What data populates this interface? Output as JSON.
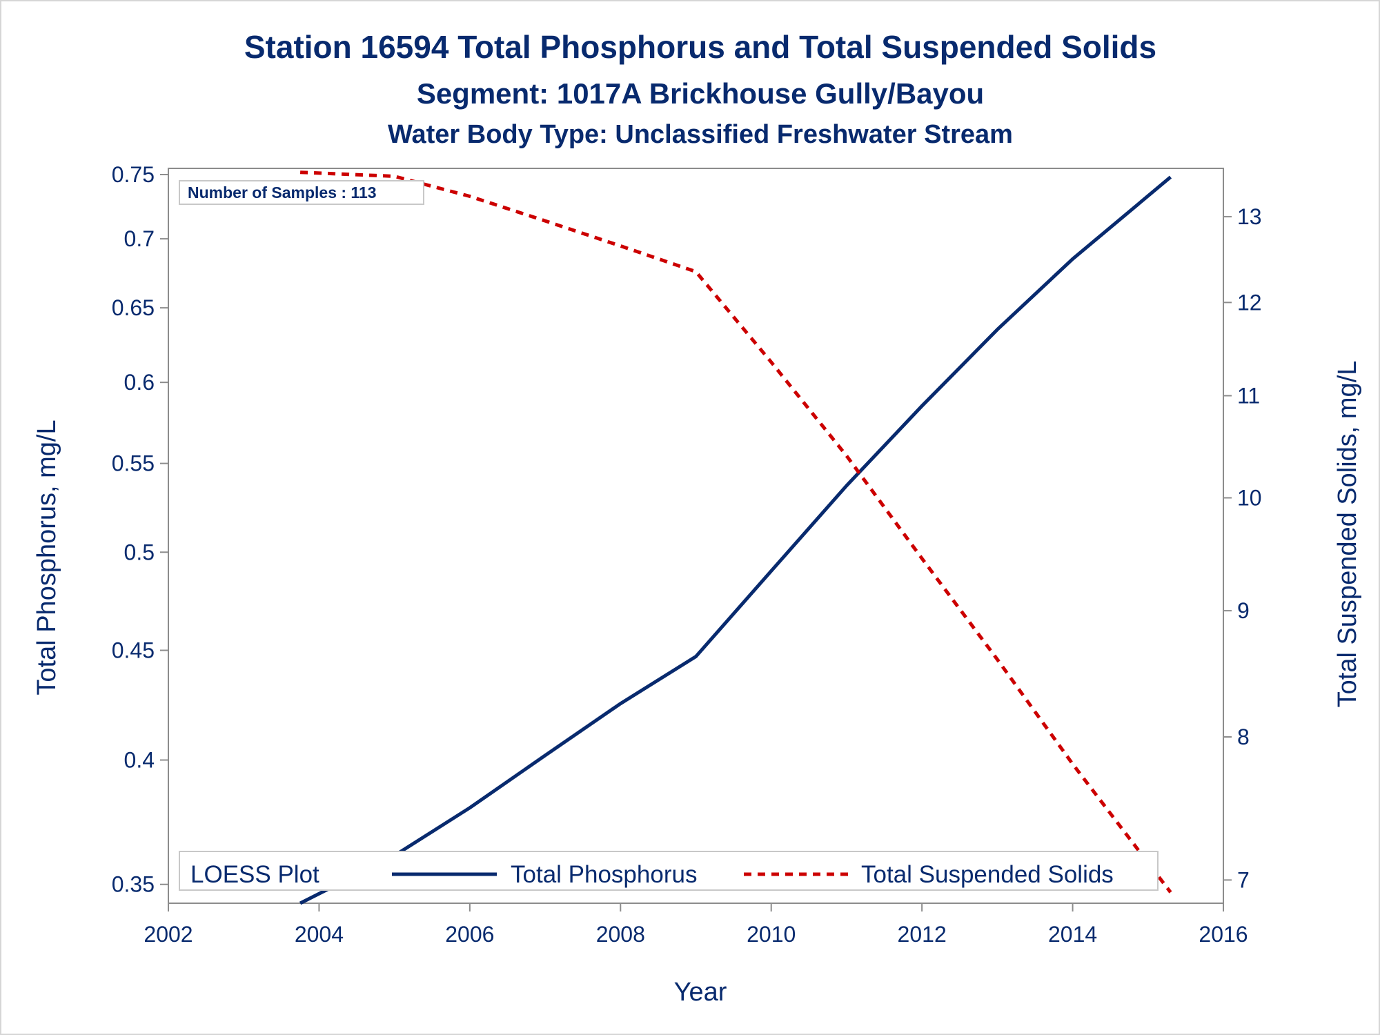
{
  "titles": {
    "line1": "Station 16594  Total Phosphorus and Total Suspended Solids",
    "line2": "Segment: 1017A  Brickhouse Gully/Bayou",
    "line3": "Water Body Type: Unclassified Freshwater Stream"
  },
  "inset": {
    "text": "Number of Samples : 113"
  },
  "legend": {
    "title": "LOESS Plot",
    "items": [
      "Total Phosphorus",
      "Total Suspended Solids"
    ]
  },
  "colors": {
    "text": "#082a6e",
    "phosphorus": "#082a6e",
    "tss": "#cc0000",
    "axis": "#8c8c8c"
  },
  "chart_data": {
    "type": "line",
    "xlabel": "Year",
    "ylabel_left": "Total Phosphorus, mg/L",
    "ylabel_right": "Total Suspended Solids, mg/L",
    "x_ticks": [
      2002,
      2004,
      2006,
      2008,
      2010,
      2012,
      2014,
      2016
    ],
    "xlim": [
      2002,
      2016
    ],
    "y_left": {
      "scale": "log",
      "lim": [
        0.343,
        0.755
      ],
      "ticks": [
        0.35,
        0.4,
        0.45,
        0.5,
        0.55,
        0.6,
        0.65,
        0.7,
        0.75
      ],
      "tick_labels": [
        "0.35",
        "0.4",
        "0.45",
        "0.5",
        "0.55",
        "0.6",
        "0.65",
        "0.7",
        "0.75"
      ]
    },
    "y_right": {
      "scale": "log",
      "lim": [
        6.85,
        13.6
      ],
      "ticks": [
        7,
        8,
        9,
        10,
        11,
        12,
        13
      ],
      "tick_labels": [
        "7",
        "8",
        "9",
        "10",
        "11",
        "12",
        "13"
      ]
    },
    "series": [
      {
        "name": "Total Phosphorus",
        "axis": "left",
        "style": "solid",
        "x": [
          2003.75,
          2005.0,
          2006.0,
          2007.0,
          2008.0,
          2009.0,
          2010.0,
          2011.0,
          2012.0,
          2013.0,
          2014.0,
          2015.3
        ],
        "y": [
          0.343,
          0.361,
          0.38,
          0.402,
          0.425,
          0.447,
          0.49,
          0.537,
          0.585,
          0.635,
          0.685,
          0.748
        ]
      },
      {
        "name": "Total Suspended Solids",
        "axis": "right",
        "style": "dashed",
        "x": [
          2003.75,
          2005.0,
          2006.0,
          2007.0,
          2008.0,
          2009.0,
          2010.0,
          2011.0,
          2012.0,
          2013.0,
          2014.0,
          2015.3
        ],
        "y": [
          13.55,
          13.5,
          13.25,
          12.95,
          12.65,
          12.35,
          11.35,
          10.4,
          9.45,
          8.6,
          7.8,
          6.92
        ]
      }
    ]
  }
}
